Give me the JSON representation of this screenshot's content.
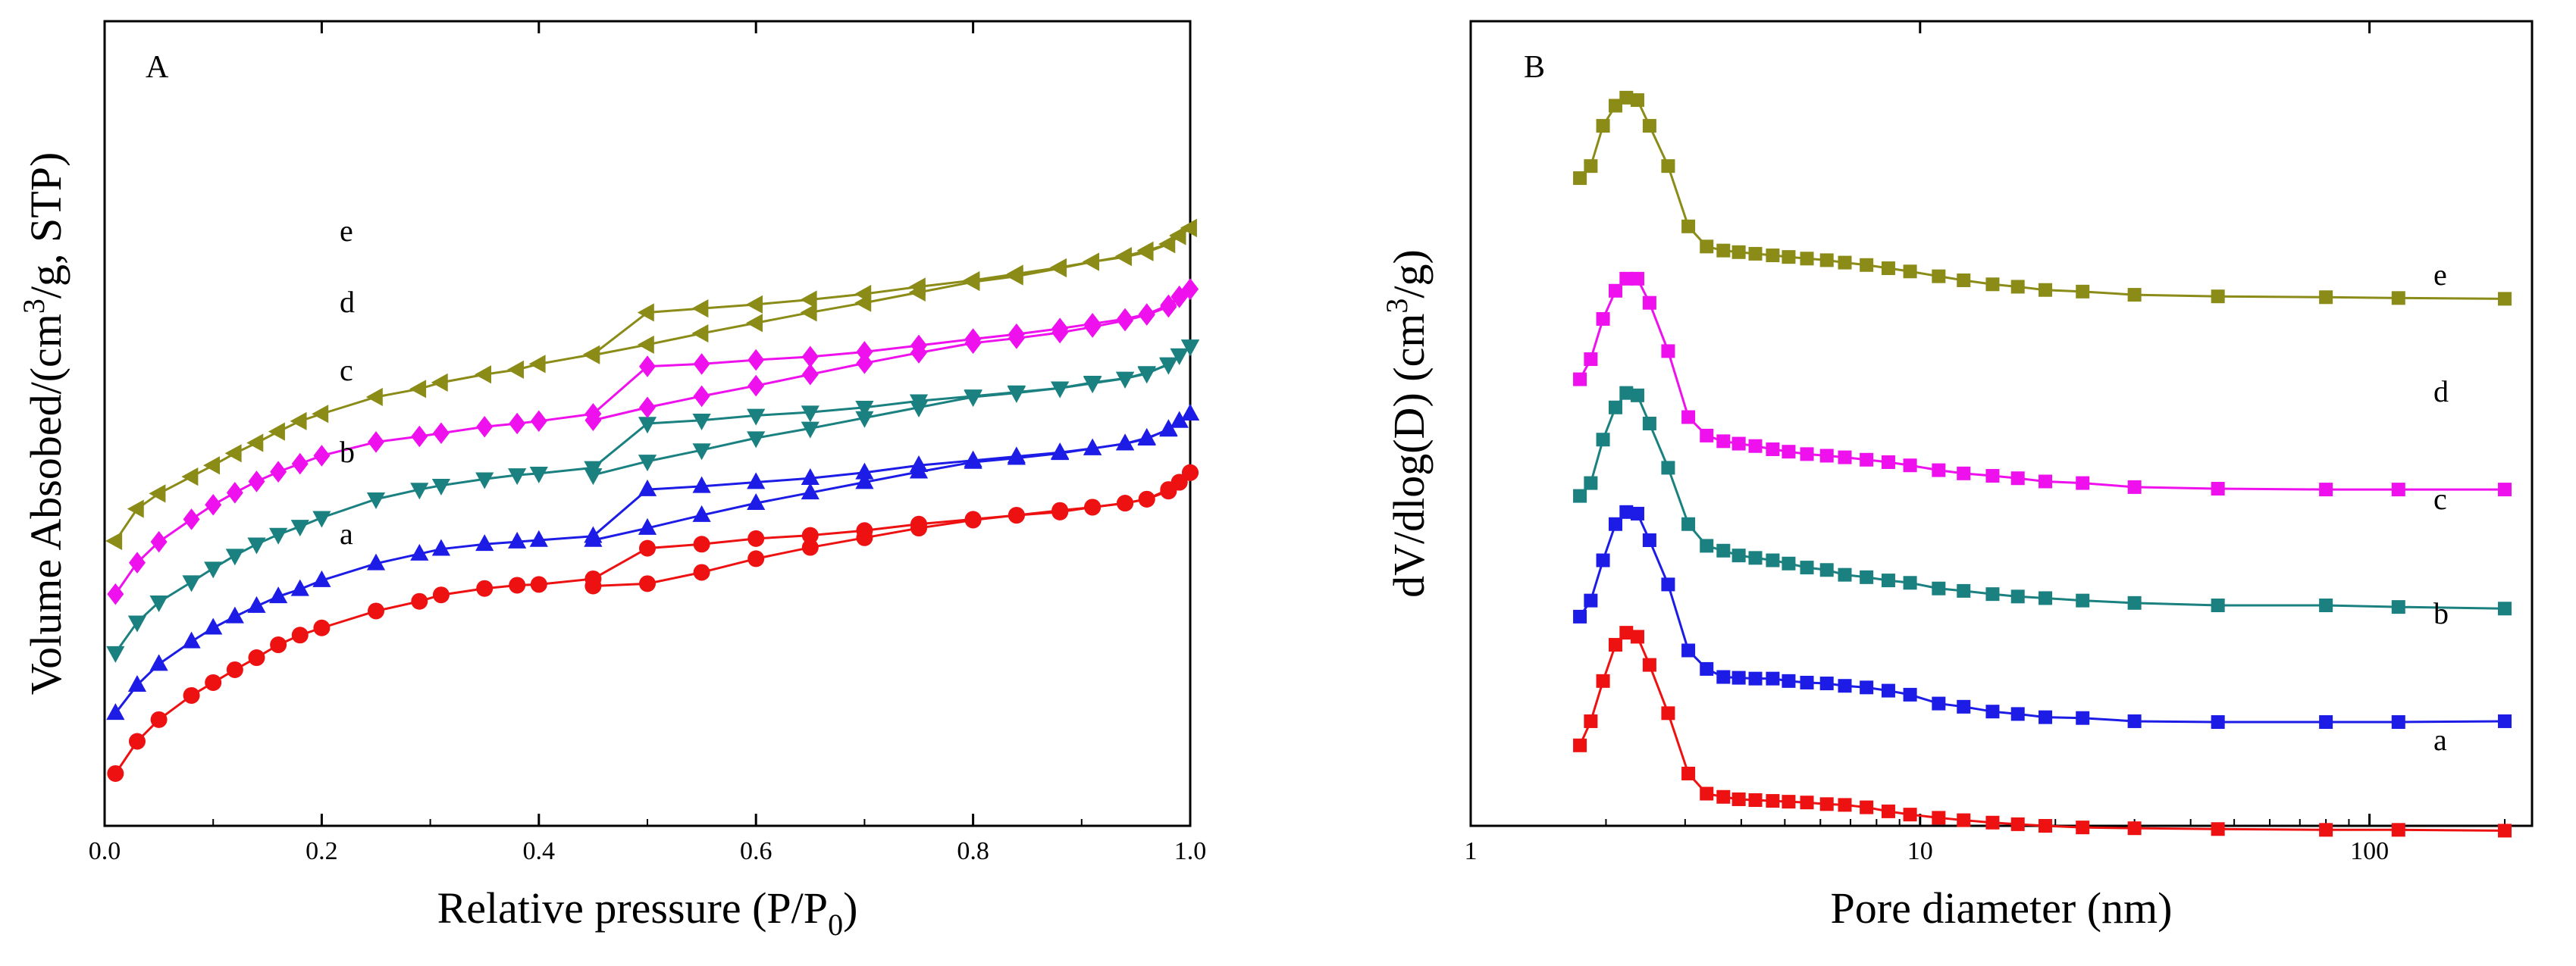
{
  "chart_data": [
    {
      "panel": "A",
      "type": "line",
      "panel_label": "A",
      "xlabel_main": "Relative pressure (P/P",
      "xlabel_sub": "0",
      "xlabel_tail": ")",
      "ylabel_main": "Volume Absobed/(cm",
      "ylabel_sup": "3",
      "ylabel_tail": "/g, STP)",
      "xlim": [
        0,
        1
      ],
      "ylim": [
        0,
        100
      ],
      "xticks": [
        "0.0",
        "0.2",
        "0.4",
        "0.6",
        "0.8",
        "1.0"
      ],
      "marker_legend": {
        "a": "circle",
        "b": "triangle-up",
        "c": "triangle-down",
        "d": "diamond",
        "e": "triangle-left"
      },
      "series": [
        {
          "name": "a",
          "color": "#ee1111",
          "marker": "circle",
          "adsorption": {
            "x": [
              0.01,
              0.03,
              0.05,
              0.08,
              0.1,
              0.12,
              0.14,
              0.16,
              0.18,
              0.2,
              0.25,
              0.29,
              0.31,
              0.35,
              0.38,
              0.4,
              0.45,
              0.5,
              0.55,
              0.6,
              0.65,
              0.7,
              0.75,
              0.8,
              0.84,
              0.88,
              0.91,
              0.94,
              0.96,
              0.98,
              0.99,
              1.0
            ],
            "y": [
              6.5,
              10.5,
              13.2,
              16.2,
              17.8,
              19.4,
              20.9,
              22.5,
              23.7,
              24.6,
              26.7,
              27.9,
              28.7,
              29.5,
              29.9,
              30.0,
              30.7,
              34.5,
              35.0,
              35.7,
              36.1,
              36.7,
              37.5,
              38.1,
              38.6,
              39.2,
              39.6,
              40.1,
              40.6,
              41.8,
              42.7,
              43.9
            ]
          },
          "desorption": {
            "x": [
              1.0,
              0.99,
              0.98,
              0.96,
              0.94,
              0.91,
              0.88,
              0.84,
              0.8,
              0.75,
              0.7,
              0.65,
              0.6,
              0.55,
              0.5,
              0.45
            ],
            "y": [
              43.9,
              42.7,
              41.6,
              40.6,
              40.1,
              39.6,
              39.0,
              38.6,
              38.0,
              37.0,
              35.8,
              34.6,
              33.2,
              31.5,
              30.1,
              29.8
            ]
          }
        },
        {
          "name": "b",
          "color": "#1c1ce6",
          "marker": "triangle-up",
          "adsorption": {
            "x": [
              0.01,
              0.03,
              0.05,
              0.08,
              0.1,
              0.12,
              0.14,
              0.16,
              0.18,
              0.2,
              0.25,
              0.29,
              0.31,
              0.35,
              0.38,
              0.4,
              0.45,
              0.5,
              0.55,
              0.6,
              0.65,
              0.7,
              0.75,
              0.8,
              0.84,
              0.88,
              0.91,
              0.94,
              0.96,
              0.98,
              0.99,
              1.0
            ],
            "y": [
              14.0,
              17.5,
              20.1,
              22.9,
              24.6,
              26.0,
              27.3,
              28.5,
              29.4,
              30.5,
              32.6,
              33.8,
              34.4,
              35.0,
              35.3,
              35.5,
              36.0,
              41.8,
              42.2,
              42.7,
              43.2,
              43.9,
              44.8,
              45.4,
              45.9,
              46.4,
              46.9,
              47.5,
              48.1,
              49.3,
              50.3,
              51.2
            ]
          },
          "desorption": {
            "x": [
              1.0,
              0.99,
              0.98,
              0.96,
              0.94,
              0.91,
              0.88,
              0.84,
              0.8,
              0.75,
              0.7,
              0.65,
              0.6,
              0.55,
              0.5,
              0.45
            ],
            "y": [
              51.2,
              50.3,
              49.2,
              48.2,
              47.5,
              46.9,
              46.3,
              45.7,
              45.2,
              44.0,
              42.7,
              41.4,
              40.1,
              38.6,
              37.0,
              35.5
            ]
          }
        },
        {
          "name": "c",
          "color": "#1a8080",
          "marker": "triangle-down",
          "adsorption": {
            "x": [
              0.01,
              0.03,
              0.05,
              0.08,
              0.1,
              0.12,
              0.14,
              0.16,
              0.18,
              0.2,
              0.25,
              0.29,
              0.31,
              0.35,
              0.38,
              0.4,
              0.45,
              0.5,
              0.55,
              0.6,
              0.65,
              0.7,
              0.75,
              0.8,
              0.84,
              0.88,
              0.91,
              0.94,
              0.96,
              0.98,
              0.99,
              1.0
            ],
            "y": [
              21.5,
              25.3,
              27.8,
              30.3,
              32.0,
              33.6,
              35.0,
              36.2,
              37.2,
              38.3,
              40.6,
              41.8,
              42.3,
              43.1,
              43.6,
              43.8,
              44.5,
              50.0,
              50.4,
              51.0,
              51.4,
              52.0,
              52.8,
              53.4,
              53.9,
              54.4,
              55.1,
              55.6,
              56.2,
              57.4,
              58.5,
              59.6
            ]
          },
          "desorption": {
            "x": [
              1.0,
              0.99,
              0.98,
              0.96,
              0.94,
              0.91,
              0.88,
              0.84,
              0.8,
              0.75,
              0.7,
              0.65,
              0.6,
              0.55,
              0.5,
              0.45
            ],
            "y": [
              59.6,
              58.5,
              57.3,
              56.3,
              55.6,
              55.0,
              54.4,
              53.8,
              53.3,
              52.0,
              50.7,
              49.4,
              48.2,
              46.7,
              45.3,
              43.6
            ]
          }
        },
        {
          "name": "d",
          "color": "#ee11ee",
          "marker": "diamond",
          "adsorption": {
            "x": [
              0.01,
              0.03,
              0.05,
              0.08,
              0.1,
              0.12,
              0.14,
              0.16,
              0.18,
              0.2,
              0.25,
              0.29,
              0.31,
              0.35,
              0.38,
              0.4,
              0.45,
              0.5,
              0.55,
              0.6,
              0.65,
              0.7,
              0.75,
              0.8,
              0.84,
              0.88,
              0.91,
              0.94,
              0.96,
              0.98,
              0.99,
              1.0
            ],
            "y": [
              28.8,
              32.7,
              35.3,
              38.1,
              39.9,
              41.4,
              42.8,
              44.0,
              45.0,
              46.0,
              47.7,
              48.4,
              48.8,
              49.6,
              50.0,
              50.3,
              51.2,
              57.1,
              57.4,
              57.9,
              58.3,
              58.9,
              59.7,
              60.5,
              61.1,
              61.8,
              62.4,
              63.0,
              63.6,
              64.7,
              65.8,
              66.7
            ]
          },
          "desorption": {
            "x": [
              1.0,
              0.99,
              0.98,
              0.96,
              0.94,
              0.91,
              0.88,
              0.84,
              0.8,
              0.75,
              0.7,
              0.65,
              0.6,
              0.55,
              0.5,
              0.45
            ],
            "y": [
              66.7,
              65.7,
              64.5,
              63.5,
              62.8,
              62.0,
              61.3,
              60.6,
              60.0,
              58.8,
              57.5,
              56.1,
              54.7,
              53.4,
              52.0,
              50.4
            ]
          }
        },
        {
          "name": "e",
          "color": "#8b8b18",
          "marker": "triangle-left",
          "adsorption": {
            "x": [
              0.01,
              0.03,
              0.05,
              0.08,
              0.1,
              0.12,
              0.14,
              0.16,
              0.18,
              0.2,
              0.25,
              0.29,
              0.31,
              0.35,
              0.38,
              0.4,
              0.45,
              0.5,
              0.55,
              0.6,
              0.65,
              0.7,
              0.75,
              0.8,
              0.84,
              0.88,
              0.91,
              0.94,
              0.96,
              0.98,
              0.99,
              1.0
            ],
            "y": [
              35.4,
              39.4,
              41.3,
              43.4,
              44.8,
              46.3,
              47.6,
              49.0,
              50.3,
              51.2,
              53.3,
              54.3,
              55.1,
              56.1,
              56.7,
              57.4,
              58.6,
              63.8,
              64.3,
              64.8,
              65.4,
              66.1,
              67.0,
              67.8,
              68.6,
              69.4,
              70.1,
              70.7,
              71.3,
              72.3,
              73.4,
              74.3
            ]
          },
          "desorption": {
            "x": [
              1.0,
              0.99,
              0.98,
              0.96,
              0.94,
              0.91,
              0.88,
              0.84,
              0.8,
              0.75,
              0.7,
              0.65,
              0.6,
              0.55,
              0.5,
              0.45
            ],
            "y": [
              74.3,
              73.3,
              72.3,
              71.5,
              70.8,
              70.1,
              69.3,
              68.3,
              67.6,
              66.3,
              65.0,
              63.8,
              62.5,
              61.2,
              59.8,
              58.5
            ]
          }
        }
      ]
    },
    {
      "panel": "B",
      "type": "line",
      "panel_label": "B",
      "xlabel": "Pore diameter (nm)",
      "ylabel_main": "dV/dlog(D) (cm",
      "ylabel_sup": "3",
      "ylabel_tail": "/g)",
      "xscale": "log",
      "xlim": [
        1,
        230
      ],
      "ylim": [
        0,
        100
      ],
      "xticks": [
        "1",
        "10",
        "100"
      ],
      "x": [
        1.75,
        1.85,
        1.97,
        2.1,
        2.22,
        2.35,
        2.5,
        2.75,
        3.05,
        3.35,
        3.65,
        3.95,
        4.3,
        4.7,
        5.1,
        5.6,
        6.2,
        6.8,
        7.6,
        8.5,
        9.5,
        11,
        12.5,
        14.5,
        16.5,
        19,
        23,
        30,
        46,
        80,
        116,
        200
      ],
      "series": [
        {
          "name": "a",
          "color": "#ee1111",
          "y": [
            10,
            13,
            18,
            22.5,
            24,
            23.5,
            20,
            14,
            6.5,
            4,
            3.6,
            3.3,
            3.2,
            3.1,
            3.0,
            2.9,
            2.7,
            2.6,
            2.3,
            1.8,
            1.4,
            1.0,
            0.7,
            0.4,
            0.2,
            0,
            -0.2,
            -0.3,
            -0.4,
            -0.5,
            -0.5,
            -0.6
          ]
        },
        {
          "name": "b",
          "color": "#1c1ce6",
          "y": [
            26,
            28,
            33,
            37.5,
            39,
            38.8,
            35.5,
            30,
            21.8,
            19.5,
            18.5,
            18.4,
            18.3,
            18.3,
            18.0,
            17.8,
            17.7,
            17.4,
            17.2,
            16.8,
            16.3,
            15.2,
            14.8,
            14.2,
            13.9,
            13.5,
            13.4,
            13.0,
            12.9,
            12.9,
            12.9,
            13.0
          ]
        },
        {
          "name": "c",
          "color": "#1a8080",
          "y": [
            41,
            42.6,
            48,
            52,
            53.8,
            53.5,
            50,
            44.5,
            37.5,
            34.8,
            34.2,
            33.6,
            33.3,
            33.0,
            32.6,
            32.1,
            31.8,
            31.2,
            30.9,
            30.5,
            30.2,
            29.5,
            29.2,
            28.8,
            28.5,
            28.3,
            28.0,
            27.7,
            27.4,
            27.4,
            27.2,
            27.0
          ]
        },
        {
          "name": "d",
          "color": "#ee11ee",
          "y": [
            55.5,
            58,
            63,
            66.5,
            68,
            68,
            65,
            59,
            50.8,
            48.5,
            47.8,
            47.5,
            47.2,
            46.8,
            46.5,
            46.2,
            46.0,
            45.8,
            45.5,
            45.2,
            44.8,
            44.2,
            43.8,
            43.5,
            43.2,
            42.8,
            42.6,
            42.1,
            41.9,
            41.8,
            41.8,
            41.8
          ]
        },
        {
          "name": "e",
          "color": "#8b8b18",
          "y": [
            80.5,
            82,
            87,
            89.5,
            90.5,
            90.2,
            87,
            82,
            74.5,
            72,
            71.5,
            71.3,
            71.1,
            70.9,
            70.7,
            70.5,
            70.3,
            70.0,
            69.7,
            69.3,
            68.9,
            68.3,
            67.8,
            67.3,
            67.0,
            66.6,
            66.4,
            66.0,
            65.8,
            65.7,
            65.6,
            65.5
          ]
        }
      ]
    }
  ]
}
